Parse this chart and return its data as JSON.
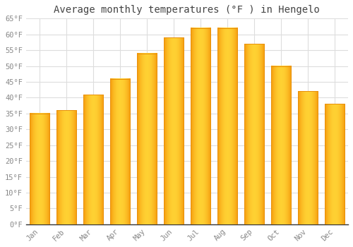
{
  "title": "Average monthly temperatures (°F ) in Hengelo",
  "months": [
    "Jan",
    "Feb",
    "Mar",
    "Apr",
    "May",
    "Jun",
    "Jul",
    "Aug",
    "Sep",
    "Oct",
    "Nov",
    "Dec"
  ],
  "temperatures": [
    35,
    36,
    41,
    46,
    54,
    59,
    62,
    62,
    57,
    50,
    42,
    38
  ],
  "bar_color_face": "#FFBB00",
  "bar_color_edge": "#E8900A",
  "bar_gradient_left": "#F5A800",
  "bar_gradient_center": "#FFD050",
  "bar_gradient_right": "#F5A800",
  "ylim": [
    0,
    65
  ],
  "yticks": [
    0,
    5,
    10,
    15,
    20,
    25,
    30,
    35,
    40,
    45,
    50,
    55,
    60,
    65
  ],
  "ytick_labels": [
    "0°F",
    "5°F",
    "10°F",
    "15°F",
    "20°F",
    "25°F",
    "30°F",
    "35°F",
    "40°F",
    "45°F",
    "50°F",
    "55°F",
    "60°F",
    "65°F"
  ],
  "title_fontsize": 10,
  "tick_fontsize": 7.5,
  "background_color": "#FFFFFF",
  "grid_color": "#DDDDDD",
  "bar_width": 0.75,
  "xlabel_rotation": 45
}
